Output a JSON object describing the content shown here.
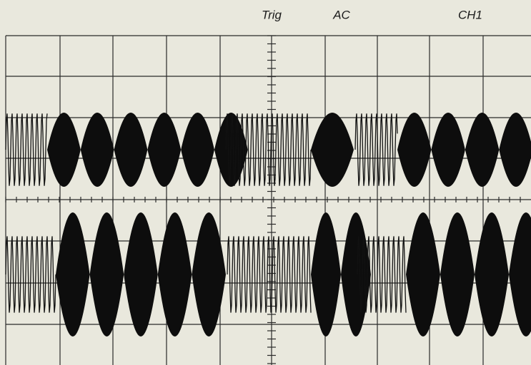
{
  "header": {
    "trigger": "Trig",
    "coupling": "AC",
    "channel": "CH1"
  }
}
